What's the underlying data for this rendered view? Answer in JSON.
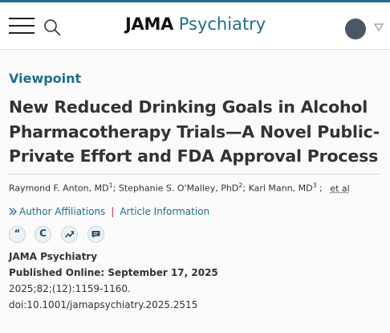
{
  "header": {
    "journal_name_bold": "JAMA",
    "journal_name_light": "Psychiatry",
    "menu_icon": "hamburger-icon",
    "search_icon": "search-icon",
    "account_icon": "avatar",
    "dropdown_icon": "chevron-down-icon"
  },
  "article": {
    "category": "Viewpoint",
    "title": "New Reduced Drinking Goals in Alcohol Pharmacotherapy Trials—A Novel Public-Private Effort and FDA Approval Process",
    "authors": [
      {
        "name": "Raymond F. Anton, MD",
        "sup": "1"
      },
      {
        "name": "Stephanie S. O'Malley, PhD",
        "sup": "2"
      },
      {
        "name": "Karl Mann, MD",
        "sup": "3"
      }
    ],
    "et_al": "et al",
    "author_affiliations": "Author Affiliations",
    "link_separator": "|",
    "article_information": "Article Information",
    "journal": "JAMA Psychiatry",
    "published": "Published Online: September 17, 2025",
    "citation": "2025;82;(12):1159-1160.",
    "doi": "doi:10.1001/jamapsychiatry.2025.2515"
  },
  "tools": {
    "cite_glyph": "“",
    "permissions_glyph": "C",
    "metrics_icon": "trend-icon",
    "comments_icon": "comment-icon"
  },
  "colors": {
    "accent": "#1f6e8c",
    "separator": "#bb2244"
  }
}
